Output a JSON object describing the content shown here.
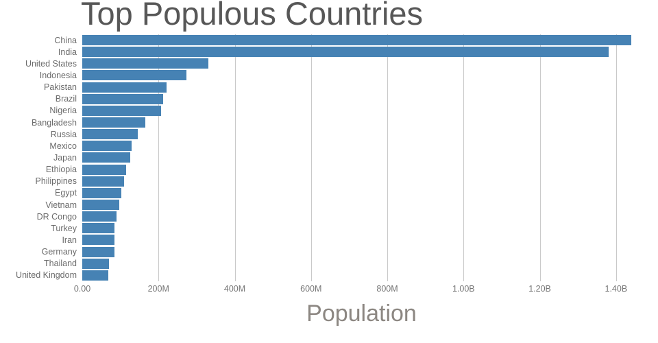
{
  "figure": {
    "title": "Top Populous Countries",
    "xlabel": "Population"
  },
  "chart_data": {
    "type": "bar",
    "orientation": "horizontal",
    "title": "Top Populous Countries",
    "xlabel": "Population",
    "ylabel": "",
    "grid": "vertical-gridlines-only",
    "legend": "none",
    "bar_color": "#4682b4",
    "categories": [
      "China",
      "India",
      "United States",
      "Indonesia",
      "Pakistan",
      "Brazil",
      "Nigeria",
      "Bangladesh",
      "Russia",
      "Mexico",
      "Japan",
      "Ethiopia",
      "Philippines",
      "Egypt",
      "Vietnam",
      "DR Congo",
      "Turkey",
      "Iran",
      "Germany",
      "Thailand",
      "United Kingdom"
    ],
    "values_millions": [
      1439,
      1380,
      331,
      274,
      221,
      213,
      206,
      165,
      146,
      129,
      126,
      115,
      110,
      102,
      97,
      90,
      84.3,
      84.0,
      83.8,
      70,
      68
    ],
    "xlim_millions": [
      0,
      1465
    ],
    "xticks": [
      {
        "value_millions": 0,
        "label": "0.00"
      },
      {
        "value_millions": 200,
        "label": "200M"
      },
      {
        "value_millions": 400,
        "label": "400M"
      },
      {
        "value_millions": 600,
        "label": "600M"
      },
      {
        "value_millions": 800,
        "label": "800M"
      },
      {
        "value_millions": 1000,
        "label": "1.00B"
      },
      {
        "value_millions": 1200,
        "label": "1.20B"
      },
      {
        "value_millions": 1400,
        "label": "1.40B"
      }
    ]
  },
  "colors": {
    "background": "#ffffff",
    "bar": "#4682b4",
    "gridline": "#c9c9c9",
    "title_text": "#575757",
    "x_axis_title_text": "#8c8782",
    "tick_label_text": "#757575",
    "category_label_text": "#6b6b6b"
  }
}
